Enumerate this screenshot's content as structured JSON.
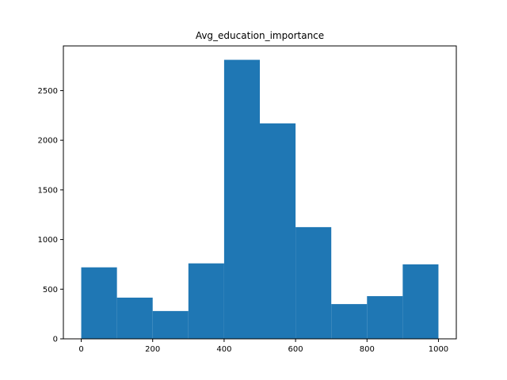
{
  "chart_data": {
    "type": "bar",
    "title": "Avg_education_importance",
    "xlabel": "",
    "ylabel": "",
    "bin_edges": [
      0,
      100,
      200,
      300,
      400,
      500,
      600,
      700,
      800,
      900,
      1000
    ],
    "values": [
      720,
      415,
      280,
      760,
      2810,
      2170,
      1125,
      350,
      430,
      750
    ],
    "xlim": [
      -50,
      1050
    ],
    "ylim": [
      0,
      2950
    ],
    "xticks": [
      0,
      200,
      400,
      600,
      800,
      1000
    ],
    "yticks": [
      0,
      500,
      1000,
      1500,
      2000,
      2500
    ],
    "bar_color": "#1f77b4",
    "grid": false
  }
}
